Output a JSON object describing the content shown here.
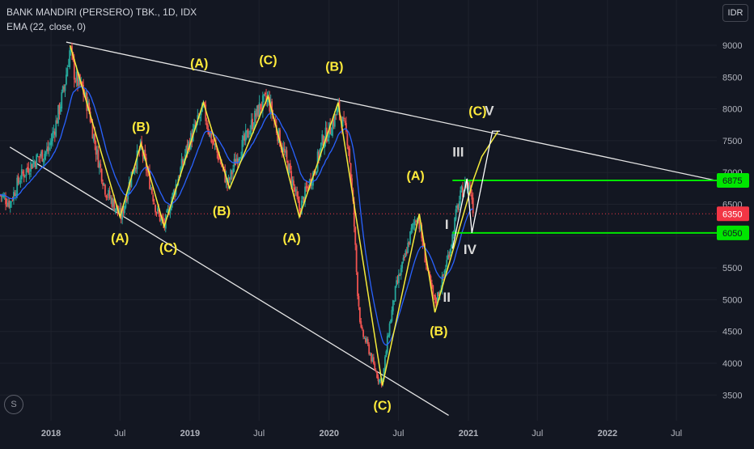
{
  "header": {
    "title": "BANK MANDIRI (PERSERO) TBK., 1D, IDX",
    "indicator": "EMA (22, close, 0)",
    "currency": "IDR",
    "logo_letter": "S"
  },
  "colors": {
    "background": "#131722",
    "candle_up": "#26a69a",
    "candle_down": "#ef5350",
    "ema": "#2962ff",
    "wave_line": "#f5eb3b",
    "wave_label": "#ffeb3b",
    "roman_label": "#d8d8d8",
    "level_line": "#00e600",
    "last_price": "#f23645",
    "trendline": "#e6e6e6"
  },
  "chart_data": {
    "type": "candlestick",
    "symbol": "BANK MANDIRI (PERSERO) TBK.",
    "timeframe": "1D",
    "exchange": "IDX",
    "ylim": [
      3100,
      9500
    ],
    "xlim": [
      "2017-08-20",
      "2022-10-15"
    ],
    "y_ticks": [
      9000,
      8500,
      8000,
      7500,
      7000,
      6500,
      6000,
      5500,
      5000,
      4500,
      4000,
      3500
    ],
    "y_tick_labels": [
      "9000",
      "8500",
      "8000",
      "7500",
      "7000",
      "6500",
      "6000",
      "5500",
      "5000",
      "4500",
      "4000",
      "3500"
    ],
    "x_ticks": [
      {
        "date": "2018-01-01",
        "label": "2018",
        "bold": true
      },
      {
        "date": "2018-07-01",
        "label": "Jul",
        "bold": false
      },
      {
        "date": "2019-01-01",
        "label": "2019",
        "bold": true
      },
      {
        "date": "2019-07-01",
        "label": "Jul",
        "bold": false
      },
      {
        "date": "2020-01-01",
        "label": "2020",
        "bold": true
      },
      {
        "date": "2020-07-01",
        "label": "Jul",
        "bold": false
      },
      {
        "date": "2021-01-01",
        "label": "2021",
        "bold": true
      },
      {
        "date": "2021-07-01",
        "label": "Jul",
        "bold": false
      },
      {
        "date": "2022-01-01",
        "label": "2022",
        "bold": true
      },
      {
        "date": "2022-07-01",
        "label": "Jul",
        "bold": false
      }
    ],
    "price_path": [
      [
        "2017-08-20",
        6650
      ],
      [
        "2017-09-15",
        6520
      ],
      [
        "2017-10-10",
        6900
      ],
      [
        "2017-11-05",
        7100
      ],
      [
        "2017-12-01",
        7250
      ],
      [
        "2017-12-25",
        7350
      ],
      [
        "2018-01-15",
        7800
      ],
      [
        "2018-02-05",
        8350
      ],
      [
        "2018-02-20",
        8950
      ],
      [
        "2018-03-05",
        8500
      ],
      [
        "2018-03-25",
        8300
      ],
      [
        "2018-04-10",
        8000
      ],
      [
        "2018-05-01",
        7300
      ],
      [
        "2018-05-25",
        6700
      ],
      [
        "2018-06-20",
        6450
      ],
      [
        "2018-07-05",
        6300
      ],
      [
        "2018-08-01",
        7000
      ],
      [
        "2018-08-25",
        7400
      ],
      [
        "2018-09-15",
        6900
      ],
      [
        "2018-10-05",
        6400
      ],
      [
        "2018-10-25",
        6150
      ],
      [
        "2018-11-15",
        6600
      ],
      [
        "2018-12-05",
        7000
      ],
      [
        "2018-12-25",
        7400
      ],
      [
        "2019-01-15",
        7700
      ],
      [
        "2019-02-05",
        8000
      ],
      [
        "2019-02-25",
        7550
      ],
      [
        "2019-03-20",
        7200
      ],
      [
        "2019-04-10",
        6800
      ],
      [
        "2019-05-01",
        7200
      ],
      [
        "2019-05-25",
        7500
      ],
      [
        "2019-06-15",
        7800
      ],
      [
        "2019-07-05",
        8050
      ],
      [
        "2019-07-25",
        8150
      ],
      [
        "2019-08-15",
        7700
      ],
      [
        "2019-09-05",
        7300
      ],
      [
        "2019-09-25",
        6900
      ],
      [
        "2019-10-15",
        6400
      ],
      [
        "2019-11-01",
        6700
      ],
      [
        "2019-11-25",
        7050
      ],
      [
        "2019-12-15",
        7500
      ],
      [
        "2020-01-05",
        7700
      ],
      [
        "2020-01-25",
        8000
      ],
      [
        "2020-02-10",
        7700
      ],
      [
        "2020-02-20",
        7500
      ],
      [
        "2020-03-05",
        6400
      ],
      [
        "2020-03-15",
        5200
      ],
      [
        "2020-03-25",
        4500
      ],
      [
        "2020-04-10",
        4300
      ],
      [
        "2020-04-25",
        4000
      ],
      [
        "2020-05-10",
        3750
      ],
      [
        "2020-05-20",
        3700
      ],
      [
        "2020-06-05",
        4500
      ],
      [
        "2020-06-25",
        5200
      ],
      [
        "2020-07-15",
        5600
      ],
      [
        "2020-08-05",
        6100
      ],
      [
        "2020-08-20",
        6350
      ],
      [
        "2020-09-05",
        5800
      ],
      [
        "2020-09-20",
        5300
      ],
      [
        "2020-10-05",
        4950
      ],
      [
        "2020-10-20",
        5200
      ],
      [
        "2020-11-05",
        5600
      ],
      [
        "2020-11-20",
        6000
      ],
      [
        "2020-12-01",
        6400
      ],
      [
        "2020-12-15",
        6700
      ],
      [
        "2020-12-28",
        6850
      ],
      [
        "2021-01-08",
        6700
      ],
      [
        "2021-01-15",
        6350
      ]
    ],
    "last_price": 6350,
    "price_labels": [
      {
        "value": 6875,
        "label": "6875"
      },
      {
        "value": 6350,
        "label": "6350"
      },
      {
        "value": 6050,
        "label": "6050"
      }
    ],
    "horizontal_levels": [
      {
        "value": 6875,
        "from": "2020-11-20",
        "label": "6875"
      },
      {
        "value": 6050,
        "from": "2020-11-20",
        "label": "6050"
      }
    ],
    "trendlines": [
      {
        "points": [
          [
            "2018-02-10",
            9050
          ],
          [
            "2022-10-15",
            6870
          ]
        ]
      },
      {
        "points": [
          [
            "2017-09-15",
            7400
          ],
          [
            "2020-11-10",
            3180
          ]
        ]
      }
    ],
    "wave_path": [
      [
        "2018-02-20",
        9000
      ],
      [
        "2018-07-01",
        6300
      ],
      [
        "2018-08-25",
        7450
      ],
      [
        "2018-10-25",
        6150
      ],
      [
        "2019-02-05",
        8100
      ],
      [
        "2019-04-15",
        6750
      ],
      [
        "2019-07-25",
        8200
      ],
      [
        "2019-10-15",
        6300
      ],
      [
        "2020-01-25",
        8100
      ],
      [
        "2020-05-20",
        3650
      ],
      [
        "2020-08-25",
        6350
      ],
      [
        "2020-10-05",
        4800
      ],
      [
        "2021-01-15",
        6900
      ],
      [
        "2021-02-05",
        7250
      ],
      [
        "2021-03-20",
        7650
      ]
    ],
    "projection_path": [
      [
        "2020-11-20",
        5800
      ],
      [
        "2020-12-28",
        6900
      ],
      [
        "2021-01-10",
        6050
      ],
      [
        "2021-03-05",
        7650
      ],
      [
        "2021-03-25",
        7650
      ]
    ],
    "wave_labels": [
      {
        "text": "(A)",
        "date": "2018-07-01",
        "price": 5900
      },
      {
        "text": "(B)",
        "date": "2018-08-25",
        "price": 7650
      },
      {
        "text": "(C)",
        "date": "2018-11-05",
        "price": 5750
      },
      {
        "text": "(A)",
        "date": "2019-01-25",
        "price": 8650
      },
      {
        "text": "(B)",
        "date": "2019-03-25",
        "price": 6330
      },
      {
        "text": "(C)",
        "date": "2019-07-25",
        "price": 8700
      },
      {
        "text": "(A)",
        "date": "2019-09-25",
        "price": 5900
      },
      {
        "text": "(B)",
        "date": "2020-01-15",
        "price": 8600
      },
      {
        "text": "(A)",
        "date": "2020-08-15",
        "price": 6880
      },
      {
        "text": "(B)",
        "date": "2020-10-15",
        "price": 4440
      },
      {
        "text": "(C)",
        "date": "2020-05-20",
        "price": 3270
      },
      {
        "text": "(C)",
        "date": "2021-01-25",
        "price": 7900
      }
    ],
    "roman_labels": [
      {
        "text": "V",
        "date": "2021-02-25",
        "price": 7900
      },
      {
        "text": "III",
        "date": "2020-12-05",
        "price": 7250
      },
      {
        "text": "I",
        "date": "2020-11-05",
        "price": 6110
      },
      {
        "text": "II",
        "date": "2020-11-05",
        "price": 4970
      },
      {
        "text": "IV",
        "date": "2021-01-05",
        "price": 5720
      }
    ]
  }
}
